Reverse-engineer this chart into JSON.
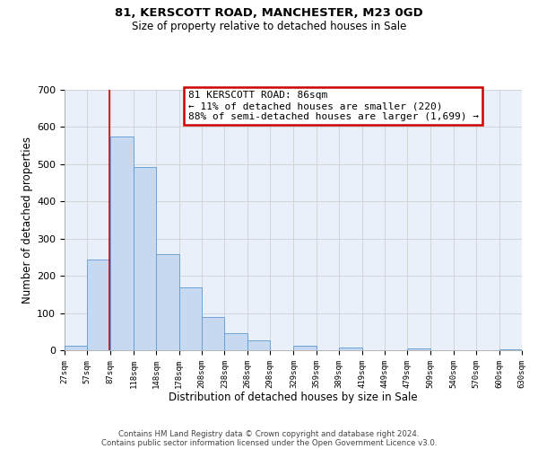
{
  "title": "81, KERSCOTT ROAD, MANCHESTER, M23 0GD",
  "subtitle": "Size of property relative to detached houses in Sale",
  "bar_color": "#c6d9f0",
  "bar_edge_color": "#5b9bd5",
  "annotation_line1": "81 KERSCOTT ROAD: 86sqm",
  "annotation_line2": "← 11% of detached houses are smaller (220)",
  "annotation_line3": "88% of semi-detached houses are larger (1,699) →",
  "annotation_box_color": "#ffffff",
  "annotation_box_edge_color": "#cc0000",
  "marker_line_color": "#cc0000",
  "marker_value": 86,
  "bin_edges": [
    27,
    57,
    87,
    118,
    148,
    178,
    208,
    238,
    268,
    298,
    329,
    359,
    389,
    419,
    449,
    479,
    509,
    540,
    570,
    600,
    630
  ],
  "bin_heights": [
    12,
    245,
    575,
    493,
    258,
    168,
    90,
    47,
    27,
    0,
    13,
    0,
    7,
    0,
    0,
    5,
    0,
    0,
    0,
    3
  ],
  "xlim": [
    27,
    630
  ],
  "ylim": [
    0,
    700
  ],
  "yticks": [
    0,
    100,
    200,
    300,
    400,
    500,
    600,
    700
  ],
  "xtick_labels": [
    "27sqm",
    "57sqm",
    "87sqm",
    "118sqm",
    "148sqm",
    "178sqm",
    "208sqm",
    "238sqm",
    "268sqm",
    "298sqm",
    "329sqm",
    "359sqm",
    "389sqm",
    "419sqm",
    "449sqm",
    "479sqm",
    "509sqm",
    "540sqm",
    "570sqm",
    "600sqm",
    "630sqm"
  ],
  "xlabel": "Distribution of detached houses by size in Sale",
  "ylabel": "Number of detached properties",
  "footer_line1": "Contains HM Land Registry data © Crown copyright and database right 2024.",
  "footer_line2": "Contains public sector information licensed under the Open Government Licence v3.0.",
  "grid_color": "#d0d0d0",
  "background_color": "#ffffff",
  "plot_bg_color": "#eaf0fa"
}
